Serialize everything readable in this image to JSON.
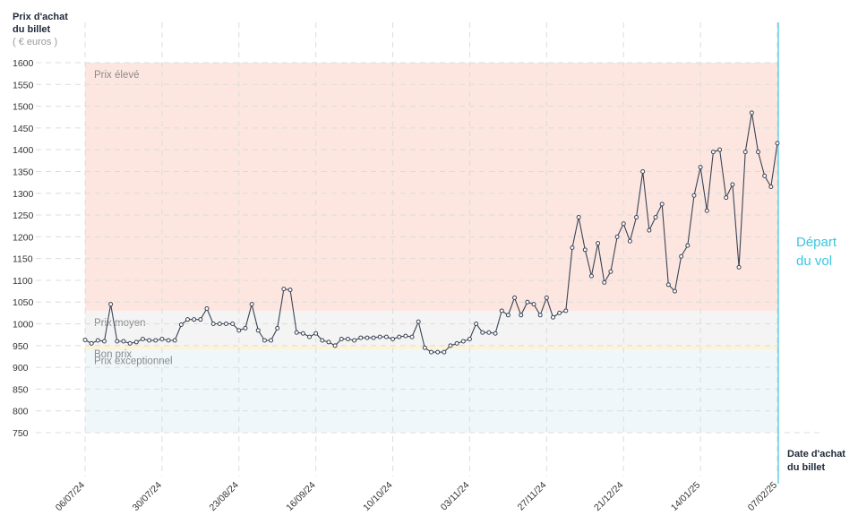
{
  "chart_data": {
    "type": "line",
    "y_label": [
      "Prix d'achat",
      "du billet"
    ],
    "y_unit": "( € euros )",
    "x_label": [
      "Date d'achat",
      "du billet"
    ],
    "departure_label": [
      "Départ",
      "du vol"
    ],
    "zones": [
      {
        "name": "Prix élevé",
        "range": [
          1030,
          1600
        ],
        "color": "#fde6e0"
      },
      {
        "name": "Prix moyen",
        "range": [
          950,
          1030
        ],
        "color": "#f4f4f4"
      },
      {
        "name": "Bon prix",
        "range": [
          940,
          950
        ],
        "color": "#fcf3d8"
      },
      {
        "name": "Prix exceptionnel",
        "range": [
          750,
          940
        ],
        "color": "#f0f7fb"
      }
    ],
    "ylim": [
      750,
      1600
    ],
    "yticks": [
      750,
      800,
      850,
      900,
      950,
      1000,
      1050,
      1100,
      1150,
      1200,
      1250,
      1300,
      1350,
      1400,
      1450,
      1500,
      1550,
      1600
    ],
    "xlim": [
      "2024-07-06",
      "2025-02-07"
    ],
    "xticks": [
      {
        "value": "2024-07-06",
        "label": "06/07/24"
      },
      {
        "value": "2024-07-30",
        "label": "30/07/24"
      },
      {
        "value": "2024-08-23",
        "label": "23/08/24"
      },
      {
        "value": "2024-09-16",
        "label": "16/09/24"
      },
      {
        "value": "2024-10-10",
        "label": "10/10/24"
      },
      {
        "value": "2024-11-03",
        "label": "03/11/24"
      },
      {
        "value": "2024-11-27",
        "label": "27/11/24"
      },
      {
        "value": "2024-12-21",
        "label": "21/12/24"
      },
      {
        "value": "2025-01-14",
        "label": "14/01/25"
      },
      {
        "value": "2025-02-07",
        "label": "07/02/25"
      }
    ],
    "grid": true,
    "line_color": "#3a4456",
    "departure_color": "#3cc6e0",
    "x": [
      "2024-07-06",
      "2024-07-08",
      "2024-07-10",
      "2024-07-12",
      "2024-07-14",
      "2024-07-16",
      "2024-07-18",
      "2024-07-20",
      "2024-07-22",
      "2024-07-24",
      "2024-07-26",
      "2024-07-28",
      "2024-07-30",
      "2024-08-01",
      "2024-08-03",
      "2024-08-05",
      "2024-08-07",
      "2024-08-09",
      "2024-08-11",
      "2024-08-13",
      "2024-08-15",
      "2024-08-17",
      "2024-08-19",
      "2024-08-21",
      "2024-08-23",
      "2024-08-25",
      "2024-08-27",
      "2024-08-29",
      "2024-08-31",
      "2024-09-02",
      "2024-09-04",
      "2024-09-06",
      "2024-09-08",
      "2024-09-10",
      "2024-09-12",
      "2024-09-14",
      "2024-09-16",
      "2024-09-18",
      "2024-09-20",
      "2024-09-22",
      "2024-09-24",
      "2024-09-26",
      "2024-09-28",
      "2024-09-30",
      "2024-10-02",
      "2024-10-04",
      "2024-10-06",
      "2024-10-08",
      "2024-10-10",
      "2024-10-12",
      "2024-10-14",
      "2024-10-16",
      "2024-10-18",
      "2024-10-20",
      "2024-10-22",
      "2024-10-24",
      "2024-10-26",
      "2024-10-28",
      "2024-10-30",
      "2024-11-01",
      "2024-11-03",
      "2024-11-05",
      "2024-11-07",
      "2024-11-09",
      "2024-11-11",
      "2024-11-13",
      "2024-11-15",
      "2024-11-17",
      "2024-11-19",
      "2024-11-21",
      "2024-11-23",
      "2024-11-25",
      "2024-11-27",
      "2024-11-29",
      "2024-12-01",
      "2024-12-03",
      "2024-12-05",
      "2024-12-07",
      "2024-12-09",
      "2024-12-11",
      "2024-12-13",
      "2024-12-15",
      "2024-12-17",
      "2024-12-19",
      "2024-12-21",
      "2024-12-23",
      "2024-12-25",
      "2024-12-27",
      "2024-12-29",
      "2024-12-31",
      "2025-01-02",
      "2025-01-04",
      "2025-01-06",
      "2025-01-08",
      "2025-01-10",
      "2025-01-12",
      "2025-01-14",
      "2025-01-16",
      "2025-01-18",
      "2025-01-20",
      "2025-01-22",
      "2025-01-24",
      "2025-01-26",
      "2025-01-28",
      "2025-01-30",
      "2025-02-01",
      "2025-02-03",
      "2025-02-05",
      "2025-02-07"
    ],
    "values": [
      963,
      955,
      962,
      960,
      1045,
      960,
      960,
      955,
      958,
      965,
      962,
      962,
      965,
      962,
      962,
      998,
      1010,
      1010,
      1010,
      1035,
      1000,
      1000,
      1000,
      1000,
      985,
      990,
      1045,
      985,
      962,
      962,
      990,
      1080,
      1078,
      980,
      978,
      970,
      978,
      962,
      958,
      950,
      965,
      965,
      962,
      968,
      968,
      968,
      970,
      970,
      965,
      970,
      972,
      970,
      1005,
      945,
      935,
      935,
      935,
      950,
      955,
      960,
      965,
      1000,
      980,
      980,
      978,
      1030,
      1020,
      1060,
      1020,
      1050,
      1045,
      1020,
      1060,
      1015,
      1025,
      1030,
      1175,
      1245,
      1170,
      1110,
      1185,
      1095,
      1120,
      1200,
      1230,
      1190,
      1245,
      1350,
      1215,
      1245,
      1275,
      1090,
      1075,
      1155,
      1180,
      1295,
      1360,
      1260,
      1395,
      1400,
      1290,
      1320,
      1130,
      1395,
      1485,
      1395,
      1340,
      1315,
      1415
    ]
  }
}
